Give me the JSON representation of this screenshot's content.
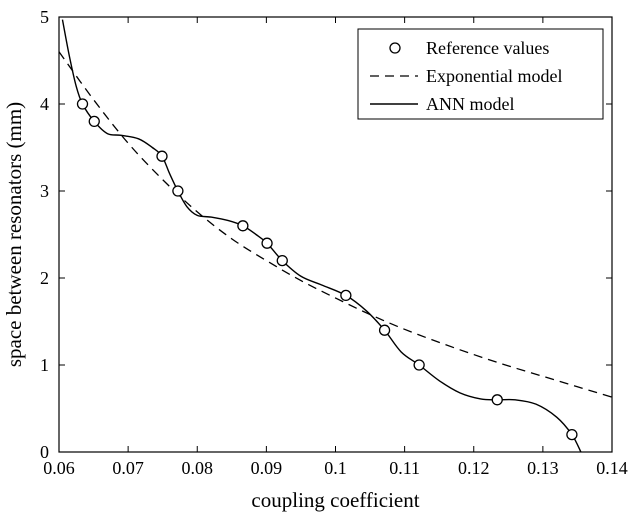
{
  "chart_data": {
    "type": "line",
    "xlabel": "coupling coefficient",
    "ylabel": "space between resonators (mm)",
    "xlim": [
      0.06,
      0.14
    ],
    "ylim": [
      0,
      5
    ],
    "xticks": [
      0.06,
      0.07,
      0.08,
      0.09,
      0.1,
      0.11,
      0.12,
      0.13,
      0.14
    ],
    "xtick_labels": [
      "0.06",
      "0.07",
      "0.08",
      "0.09",
      "0.1",
      "0.11",
      "0.12",
      "0.13",
      "0.14"
    ],
    "yticks": [
      0,
      1,
      2,
      3,
      4,
      5
    ],
    "ytick_labels": [
      "0",
      "1",
      "2",
      "3",
      "4",
      "5"
    ],
    "grid": false,
    "legend_position": "top-right",
    "series": [
      {
        "name": "Reference values",
        "style": "markers-circle",
        "x": [
          0.0634,
          0.0651,
          0.0749,
          0.0772,
          0.0866,
          0.0901,
          0.0923,
          0.1015,
          0.1071,
          0.1121,
          0.1234,
          0.1342
        ],
        "y": [
          4.0,
          3.8,
          3.4,
          3.0,
          2.6,
          2.4,
          2.2,
          1.8,
          1.4,
          1.0,
          0.6,
          0.2
        ]
      },
      {
        "name": "Exponential model",
        "style": "dashed",
        "x": [
          0.06,
          0.065,
          0.07,
          0.075,
          0.08,
          0.085,
          0.09,
          0.095,
          0.1,
          0.105,
          0.11,
          0.115,
          0.12,
          0.125,
          0.13,
          0.135,
          0.14
        ],
        "y": [
          4.6,
          4.05,
          3.55,
          3.13,
          2.76,
          2.45,
          2.2,
          1.97,
          1.77,
          1.58,
          1.41,
          1.26,
          1.12,
          0.99,
          0.87,
          0.75,
          0.63
        ]
      },
      {
        "name": "ANN model",
        "style": "solid",
        "x": [
          0.0605,
          0.0615,
          0.0625,
          0.0634,
          0.0651,
          0.067,
          0.069,
          0.0715,
          0.0735,
          0.0749,
          0.076,
          0.0772,
          0.0785,
          0.08,
          0.082,
          0.0845,
          0.0866,
          0.0885,
          0.0901,
          0.0923,
          0.095,
          0.098,
          0.1015,
          0.1045,
          0.1071,
          0.1095,
          0.1121,
          0.115,
          0.118,
          0.121,
          0.1234,
          0.126,
          0.129,
          0.132,
          0.1342,
          0.1355
        ],
        "y": [
          4.97,
          4.55,
          4.2,
          4.0,
          3.8,
          3.66,
          3.64,
          3.6,
          3.5,
          3.4,
          3.2,
          3.0,
          2.82,
          2.72,
          2.7,
          2.66,
          2.6,
          2.5,
          2.4,
          2.2,
          2.02,
          1.92,
          1.8,
          1.62,
          1.4,
          1.15,
          1.0,
          0.82,
          0.68,
          0.61,
          0.6,
          0.6,
          0.55,
          0.4,
          0.2,
          0.0
        ]
      }
    ]
  }
}
